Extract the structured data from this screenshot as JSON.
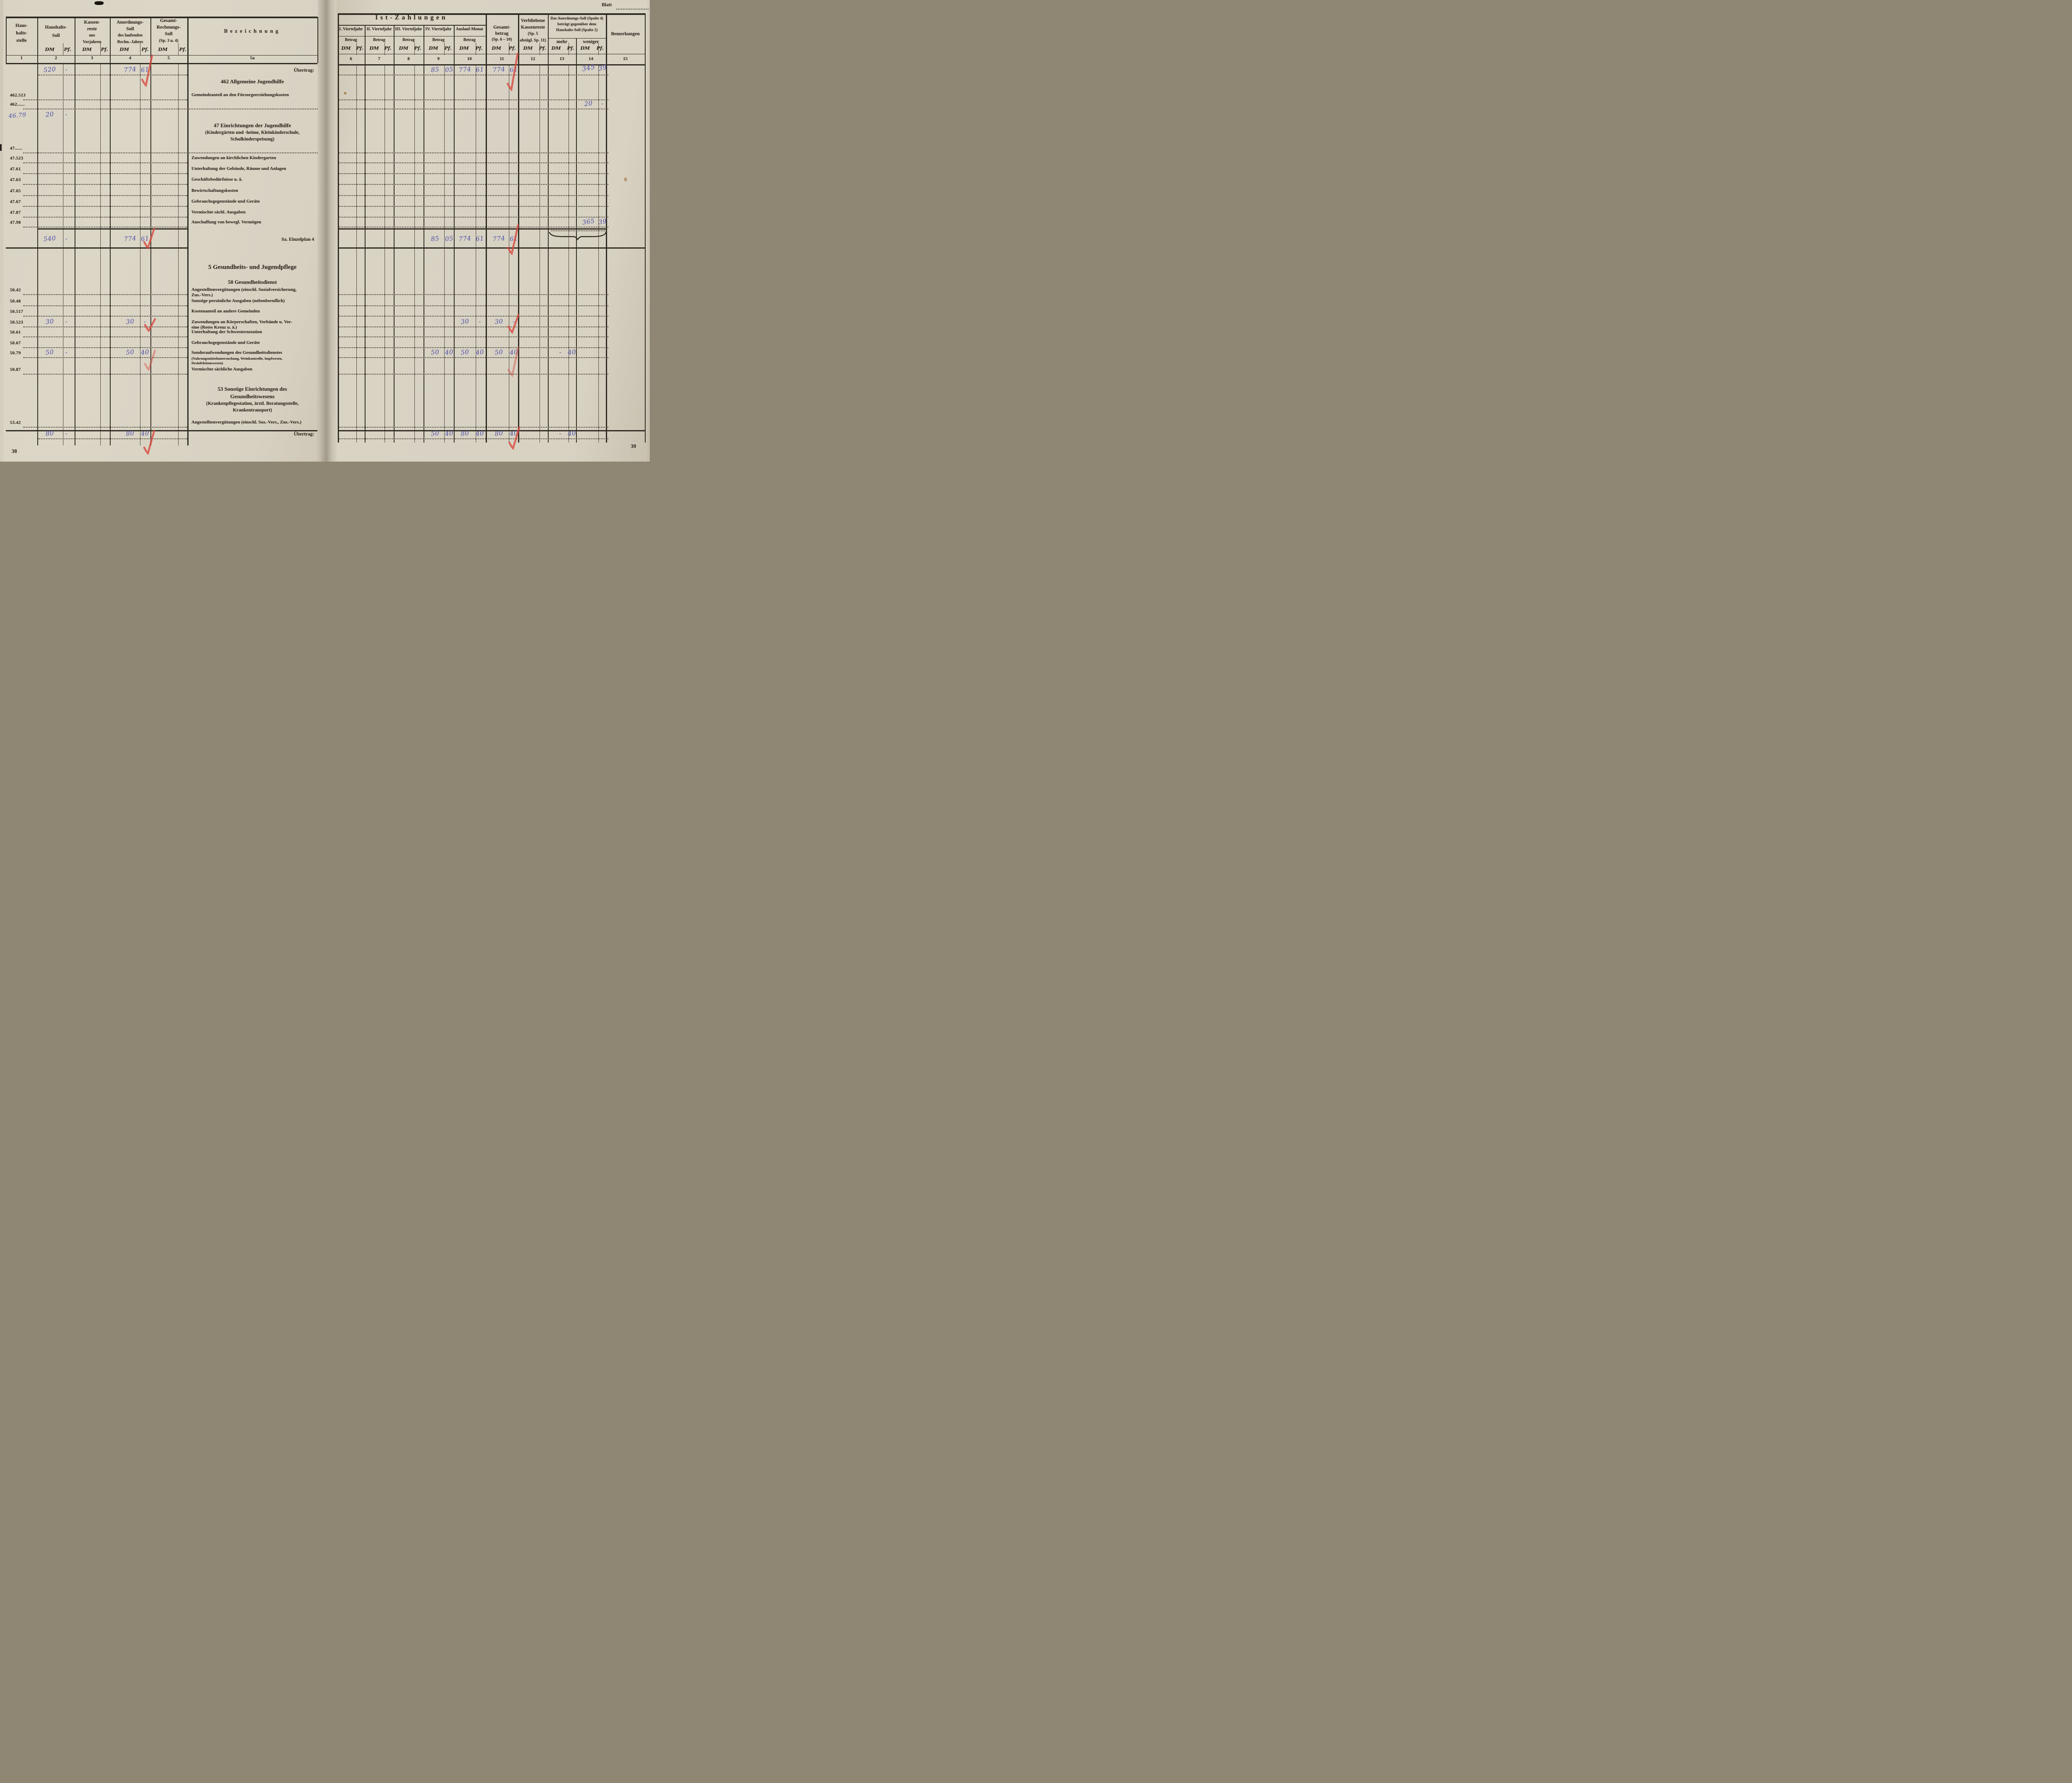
{
  "meta": {
    "blatt_label": "Blatt",
    "page_number_left": "38",
    "page_number_right": "39",
    "currency_dm": "DM",
    "currency_pf": "Pf."
  },
  "colors": {
    "paper": "#d8d2c2",
    "printed_ink": "#2d261d",
    "handwriting_ink": "#4c4ea6",
    "check_mark_red": "#d8493e"
  },
  "left_header": {
    "col1": [
      "Haus-",
      "halts-",
      "stelle"
    ],
    "col2": [
      "Haushalts-",
      "Soll"
    ],
    "col3": [
      "Kassen-",
      "reste",
      "aus",
      "Vorjahren"
    ],
    "col4": [
      "Anordnungs-",
      "Soll",
      "des laufenden",
      "Rechn.-Jahres"
    ],
    "col5": [
      "Gesamt-",
      "Rechnungs-",
      "Soll",
      "(Sp. 3 u. 4)"
    ],
    "col5a": "Bezeichnung",
    "numbers": [
      "1",
      "2",
      "3",
      "4",
      "5",
      "5a"
    ]
  },
  "right_header": {
    "title": "Ist-Zahlungen",
    "quarters": [
      "I. Vierteljahr",
      "II. Vierteljahr",
      "III. Vierteljahr",
      "IV. Vierteljahr",
      "Auslauf-Monat"
    ],
    "betrag": "Betrag",
    "gesamt": [
      "Gesamt-",
      "betrag",
      "(Sp. 6 – 10)"
    ],
    "verbliebene": [
      "Verbliebene",
      "Kassenreste",
      "(Sp. 5",
      "abzügl. Sp. 11)"
    ],
    "anordnung_vs": [
      "Das Anordnungs-Soll (Spalte 4)",
      "beträgt gegenüber dem",
      "Haushalts-Soll (Spalte 2)"
    ],
    "mehr": "mehr",
    "weniger": "weniger",
    "bemerkungen": "Bemerkungen",
    "numbers": [
      "6",
      "7",
      "8",
      "9",
      "10",
      "11",
      "12",
      "13",
      "14",
      "15"
    ]
  },
  "rows": [
    {
      "id": "uebertrag-top",
      "type": "entry",
      "bez_lines": [
        {
          "t": "Übertrag:",
          "cls": "bz-b"
        }
      ],
      "bez_align": "right",
      "dotted": "money",
      "left": {
        "hs": [
          "520",
          "-"
        ],
        "an": [
          "774",
          "61"
        ]
      },
      "right": {
        "q4": [
          "85",
          "05"
        ],
        "aus": [
          "774",
          "61"
        ],
        "ges": [
          "774",
          "61"
        ],
        "weniger": [
          "345",
          "39"
        ]
      },
      "checks": [
        "L",
        "R"
      ]
    },
    {
      "id": "h-462",
      "type": "heading",
      "lines": [
        {
          "t": "462 Allgemeine Jugendhilfe",
          "cls": "hd"
        }
      ]
    },
    {
      "id": "462.513",
      "type": "entry",
      "label": "462.513",
      "dotted": "money",
      "bez_lines": [
        {
          "t": "Gemeindeanteil an den Fürsorgeerziehungskosten",
          "cls": "bz"
        }
      ]
    },
    {
      "id": "462-dot",
      "type": "entry",
      "label": "462......",
      "dotted": "full",
      "bez_lines": [],
      "right": {
        "weniger": [
          "20",
          "-"
        ]
      }
    },
    {
      "id": "46.79",
      "type": "entry",
      "label_hw": "46.79",
      "dotted": "none",
      "bez_lines": [],
      "left": {
        "hs": [
          "20",
          "-"
        ]
      }
    },
    {
      "id": "h-47",
      "type": "heading",
      "lines": [
        {
          "t": "47 Einrichtungen der Jugendhilfe",
          "cls": "hd"
        },
        {
          "t": "(Kindergärten und -heime, Kleinkinderschule,",
          "cls": "hd-sm"
        },
        {
          "t": "Schulkinderspeisung)",
          "cls": "hd-sm"
        }
      ]
    },
    {
      "id": "47-dot",
      "type": "entry",
      "label": "47......",
      "dotted": "full",
      "bez_lines": []
    },
    {
      "id": "47.523",
      "type": "entry",
      "label": "47.523",
      "dotted": "money",
      "bez_lines": [
        {
          "t": "Zuwendungen an kirchlichen Kindergarten",
          "cls": "bz"
        }
      ]
    },
    {
      "id": "47.61",
      "type": "entry",
      "label": "47.61",
      "dotted": "money",
      "bez_lines": [
        {
          "t": "Unterhaltung der Gebäude, Räume und Anlagen",
          "cls": "bz"
        }
      ]
    },
    {
      "id": "47.63",
      "type": "entry",
      "label": "47.63",
      "dotted": "money",
      "bez_lines": [
        {
          "t": "Geschäftsbedürfnisse u. ä.",
          "cls": "bz"
        }
      ]
    },
    {
      "id": "47.65",
      "type": "entry",
      "label": "47.65",
      "dotted": "money",
      "bez_lines": [
        {
          "t": "Bewirtschaftungskosten",
          "cls": "bz"
        }
      ]
    },
    {
      "id": "47.67",
      "type": "entry",
      "label": "47.67",
      "dotted": "money",
      "bez_lines": [
        {
          "t": "Gebrauchsgegenstände und Geräte",
          "cls": "bz"
        }
      ]
    },
    {
      "id": "47.87",
      "type": "entry",
      "label": "47.87",
      "dotted": "money",
      "bez_lines": [
        {
          "t": "Vermischte sächl. Ausgaben",
          "cls": "bz"
        }
      ]
    },
    {
      "id": "47.98",
      "type": "entry",
      "label": "47.98",
      "dotted": "money",
      "section_end": true,
      "brace": true,
      "bez_lines": [
        {
          "t": "Anschaffung von bewegl. Vermögen",
          "cls": "bz"
        }
      ],
      "right": {
        "weniger": [
          "365",
          "39"
        ]
      }
    },
    {
      "id": "sa-4",
      "type": "total",
      "bez_lines": [
        {
          "t": "Sa. Einzelplan 4",
          "cls": "bz-b"
        }
      ],
      "bez_align": "right",
      "dotted": "none",
      "left": {
        "hs": [
          "540",
          "-"
        ],
        "an": [
          "774",
          "61"
        ]
      },
      "right": {
        "q4": [
          "85",
          "05"
        ],
        "aus": [
          "774",
          "61"
        ],
        "ges": [
          "774",
          "61"
        ]
      },
      "checks": [
        "L",
        "R"
      ]
    },
    {
      "id": "h-5",
      "type": "heading",
      "lines": [
        {
          "t": "5 Gesundheits- und Jugendpflege",
          "cls": "hd-lg"
        }
      ]
    },
    {
      "id": "h-50",
      "type": "heading",
      "lines": [
        {
          "t": "50 Gesundheitsdienst",
          "cls": "hd"
        }
      ]
    },
    {
      "id": "50.42",
      "type": "entry",
      "label": "50.42",
      "dotted": "money",
      "bez_lines": [
        {
          "t": "Angestelltenvergütungen (einschl. Sozialversicherung,",
          "cls": "bz"
        },
        {
          "t": "Zus.-Vers.)",
          "cls": "bz"
        }
      ]
    },
    {
      "id": "50.48",
      "type": "entry",
      "label": "50.48",
      "dotted": "money",
      "bez_lines": [
        {
          "t": "Sonstige persönliche Ausgaben (nebenberuflich)",
          "cls": "bz"
        }
      ]
    },
    {
      "id": "50.517",
      "type": "entry",
      "label": "50.517",
      "dotted": "money",
      "bez_lines": [
        {
          "t": "Kostenanteil an andere Gemeinden",
          "cls": "bz"
        }
      ]
    },
    {
      "id": "50.523",
      "type": "entry",
      "label": "50.523",
      "dotted": "money",
      "bez_lines": [
        {
          "t": "Zuwendungen an Körperschaften, Verbände u. Ver-",
          "cls": "bz"
        },
        {
          "t": "eine (Rotes Kreuz u. ä.)",
          "cls": "bz"
        }
      ],
      "left": {
        "hs": [
          "30",
          "-"
        ],
        "an": [
          "30",
          "-"
        ]
      },
      "right": {
        "aus": [
          "30",
          "-"
        ],
        "ges": [
          "30",
          "-"
        ]
      },
      "checks": [
        "L",
        "R"
      ]
    },
    {
      "id": "50.61",
      "type": "entry",
      "label": "50.61",
      "dotted": "money",
      "bez_lines": [
        {
          "t": "Unterhaltung der Schwesternstation",
          "cls": "bz"
        }
      ]
    },
    {
      "id": "50.67",
      "type": "entry",
      "label": "50.67",
      "dotted": "money",
      "bez_lines": [
        {
          "t": "Gebrauchsgegenstände und Geräte",
          "cls": "bz"
        }
      ]
    },
    {
      "id": "50.79",
      "type": "entry",
      "label": "50.79",
      "dotted": "money",
      "bez_lines": [
        {
          "t": "Sonderaufwendungen des Gesundheitsdienstes",
          "cls": "bz"
        },
        {
          "t": "(Nahrungsmitteluntersuchung, Weinkontrolle, Impfwesen,",
          "cls": "bz-sm"
        },
        {
          "t": "Desinfektionswesen)",
          "cls": "bz-sm"
        }
      ],
      "left": {
        "hs": [
          "50",
          "-"
        ],
        "an": [
          "50",
          "40"
        ]
      },
      "right": {
        "q4": [
          "50",
          "40"
        ],
        "aus": [
          "50",
          "40"
        ],
        "ges": [
          "50",
          "40"
        ],
        "mehr": [
          "-",
          "40"
        ]
      },
      "checks": [
        "Lp",
        "Rp"
      ]
    },
    {
      "id": "50.87",
      "type": "entry",
      "label": "50.87",
      "dotted": "money",
      "bez_lines": [
        {
          "t": "Vermischte sächliche Ausgaben",
          "cls": "bz"
        }
      ]
    },
    {
      "id": "h-53",
      "type": "heading",
      "lines": [
        {
          "t": "53 Sonstige Einrichtungen des",
          "cls": "hd"
        },
        {
          "t": "Gesundheitswesens",
          "cls": "hd"
        },
        {
          "t": "(Krankenpflegestation, ärztl. Beratungsstelle,",
          "cls": "hd-sm"
        },
        {
          "t": "Krankentransport)",
          "cls": "hd-sm"
        }
      ]
    },
    {
      "id": "53.42",
      "type": "entry",
      "label": "53.42",
      "dotted": "money",
      "pre_total_rule": true,
      "bez_lines": [
        {
          "t": "Angestelltenvergütungen (einschl. Soz.-Vers., Zus.-Vers.)",
          "cls": "bz"
        }
      ]
    },
    {
      "id": "uebertrag-bottom",
      "type": "entry",
      "bez_lines": [
        {
          "t": "Übertrag:",
          "cls": "bz-b"
        }
      ],
      "bez_align": "right",
      "dotted": "money",
      "left": {
        "hs": [
          "80",
          "-"
        ],
        "an": [
          "80",
          "40"
        ]
      },
      "right": {
        "q4": [
          "50",
          "40"
        ],
        "aus": [
          "80",
          "40"
        ],
        "ges": [
          "80",
          "40"
        ],
        "mehr": [
          "-",
          "40"
        ]
      },
      "checks": [
        "L",
        "R"
      ]
    }
  ]
}
